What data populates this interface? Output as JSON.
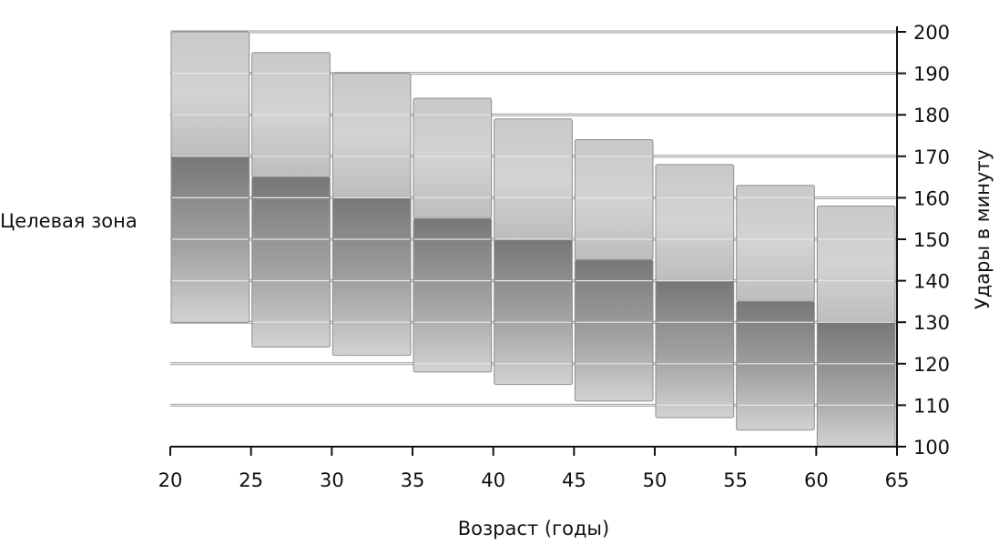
{
  "chart_data": {
    "type": "bar",
    "title": "",
    "xlabel": "Возраст (годы)",
    "ylabel": "Удары в минуту",
    "side_label": "Целевая зона",
    "xlim": [
      20,
      65
    ],
    "ylim": [
      100,
      200
    ],
    "x_ticks": [
      "20",
      "25",
      "30",
      "35",
      "40",
      "45",
      "50",
      "55",
      "60",
      "65"
    ],
    "y_ticks": [
      "100",
      "110",
      "120",
      "130",
      "140",
      "150",
      "160",
      "170",
      "180",
      "190",
      "200"
    ],
    "y_axis_position": "right",
    "grid": true,
    "series": [
      {
        "x": [
          20,
          25,
          30,
          35,
          40,
          45,
          50,
          55,
          60
        ],
        "max_rate": [
          200,
          195,
          190,
          184,
          179,
          174,
          168,
          163,
          158
        ],
        "target_upper": [
          170,
          165,
          160,
          155,
          150,
          145,
          140,
          135,
          130
        ],
        "target_lower": [
          130,
          124,
          122,
          118,
          115,
          111,
          107,
          104,
          100
        ]
      }
    ],
    "colors": {
      "upper_band_light": "#cfcfcf",
      "upper_band_mid": "#b9b9b9",
      "target_dark": "#7c7c7c",
      "target_light": "#bdbdbd",
      "gridline": "#8a8a8a",
      "axis": "#111111"
    }
  }
}
